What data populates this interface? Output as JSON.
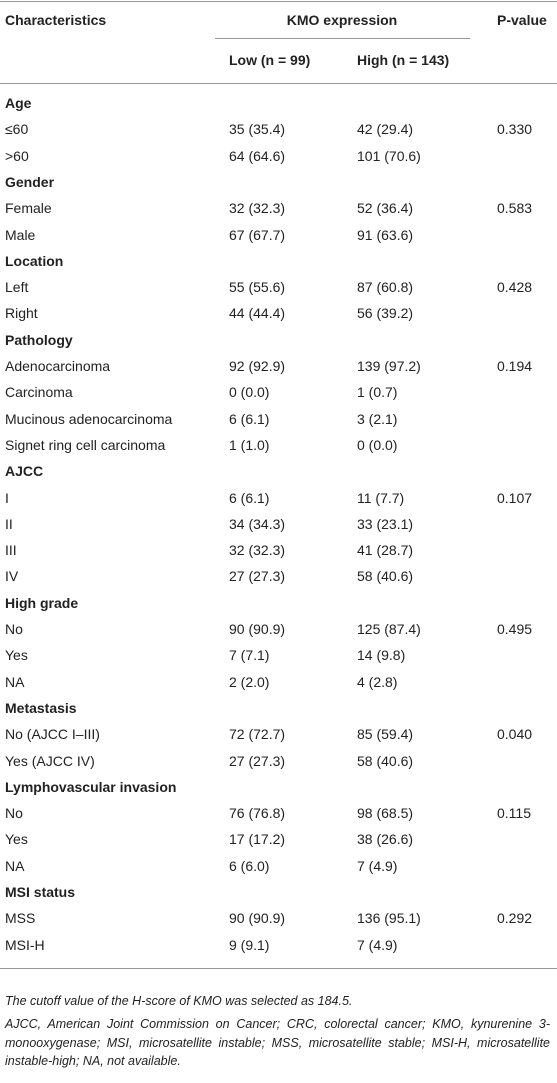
{
  "header": {
    "characteristics": "Characteristics",
    "group": "KMO expression",
    "low": "Low (n = 99)",
    "high": "High (n = 143)",
    "p": "P-value"
  },
  "sections": [
    {
      "title": "Age",
      "rows": [
        {
          "label": "≤60",
          "low": "35 (35.4)",
          "high": "42 (29.4)",
          "p": "0.330"
        },
        {
          "label": ">60",
          "low": "64 (64.6)",
          "high": "101 (70.6)"
        }
      ]
    },
    {
      "title": "Gender",
      "rows": [
        {
          "label": "Female",
          "low": "32 (32.3)",
          "high": "52 (36.4)",
          "p": "0.583"
        },
        {
          "label": "Male",
          "low": "67 (67.7)",
          "high": "91 (63.6)"
        }
      ]
    },
    {
      "title": "Location",
      "rows": [
        {
          "label": "Left",
          "low": "55 (55.6)",
          "high": "87 (60.8)",
          "p": "0.428"
        },
        {
          "label": "Right",
          "low": "44 (44.4)",
          "high": "56 (39.2)"
        }
      ]
    },
    {
      "title": "Pathology",
      "rows": [
        {
          "label": "Adenocarcinoma",
          "low": "92 (92.9)",
          "high": "139 (97.2)",
          "p": "0.194"
        },
        {
          "label": "Carcinoma",
          "low": "0 (0.0)",
          "high": "1 (0.7)"
        },
        {
          "label": "Mucinous adenocarcinoma",
          "low": "6 (6.1)",
          "high": "3 (2.1)"
        },
        {
          "label": "Signet ring cell carcinoma",
          "low": "1 (1.0)",
          "high": "0 (0.0)"
        }
      ]
    },
    {
      "title": "AJCC",
      "rows": [
        {
          "label": "I",
          "low": "6 (6.1)",
          "high": "11 (7.7)",
          "p": "0.107"
        },
        {
          "label": "II",
          "low": "34 (34.3)",
          "high": "33 (23.1)"
        },
        {
          "label": "III",
          "low": "32 (32.3)",
          "high": "41 (28.7)"
        },
        {
          "label": "IV",
          "low": "27 (27.3)",
          "high": "58 (40.6)"
        }
      ]
    },
    {
      "title": "High grade",
      "rows": [
        {
          "label": "No",
          "low": "90 (90.9)",
          "high": "125 (87.4)",
          "p": "0.495"
        },
        {
          "label": "Yes",
          "low": "7 (7.1)",
          "high": "14 (9.8)"
        },
        {
          "label": "NA",
          "low": "2 (2.0)",
          "high": "4 (2.8)"
        }
      ]
    },
    {
      "title": "Metastasis",
      "rows": [
        {
          "label": "No (AJCC I–III)",
          "low": "72 (72.7)",
          "high": "85 (59.4)",
          "p": "0.040"
        },
        {
          "label": "Yes (AJCC IV)",
          "low": "27 (27.3)",
          "high": "58 (40.6)"
        }
      ]
    },
    {
      "title": "Lymphovascular invasion",
      "rows": [
        {
          "label": "No",
          "low": "76 (76.8)",
          "high": "98 (68.5)",
          "p": "0.115"
        },
        {
          "label": "Yes",
          "low": "17 (17.2)",
          "high": "38 (26.6)"
        },
        {
          "label": "NA",
          "low": "6 (6.0)",
          "high": "7 (4.9)"
        }
      ]
    },
    {
      "title": "MSI status",
      "rows": [
        {
          "label": "MSS",
          "low": "90 (90.9)",
          "high": "136 (95.1)",
          "p": "0.292"
        },
        {
          "label": "MSI-H",
          "low": "9 (9.1)",
          "high": "7 (4.9)"
        }
      ]
    }
  ],
  "footnotes": [
    "The cutoff value of the H-score of KMO was selected as 184.5.",
    "AJCC, American Joint Commission on Cancer; CRC, colorectal cancer; KMO, kynurenine 3-monooxygenase; MSI, microsatellite instable; MSS, microsatellite stable; MSI-H, microsatellite instable-high; NA, not available."
  ]
}
